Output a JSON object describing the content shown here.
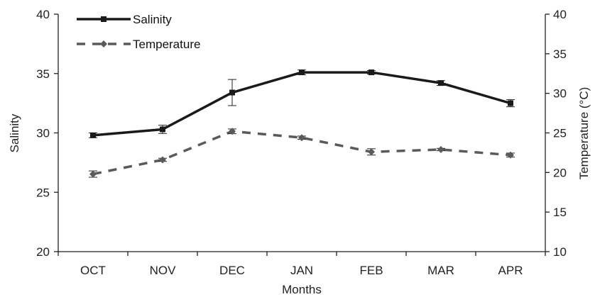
{
  "chart_data": {
    "type": "line",
    "categories": [
      "OCT",
      "NOV",
      "DEC",
      "JAN",
      "FEB",
      "MAR",
      "APR"
    ],
    "xlabel": "Months",
    "ylabel_left": "Salinity",
    "ylabel_right": "Temperature (°C)",
    "ylim_left": [
      20,
      40
    ],
    "ylim_right": [
      10,
      40
    ],
    "yticks_left": [
      20,
      25,
      30,
      35,
      40
    ],
    "yticks_right": [
      10,
      15,
      20,
      25,
      30,
      35,
      40
    ],
    "grid": false,
    "legend_position": "top-left",
    "series": [
      {
        "name": "Salinity",
        "axis": "left",
        "style": "solid",
        "marker": "square",
        "color": "#1a1a1a",
        "values": [
          29.8,
          30.3,
          33.4,
          35.1,
          35.1,
          34.2,
          32.5
        ],
        "errors": [
          0.2,
          0.35,
          1.1,
          0.2,
          0.15,
          0.2,
          0.3
        ]
      },
      {
        "name": "Temperature",
        "axis": "right",
        "style": "dashed",
        "marker": "diamond",
        "color": "#5a5a5a",
        "values": [
          19.8,
          21.6,
          25.2,
          24.4,
          22.6,
          22.9,
          22.2
        ],
        "errors": [
          0.4,
          0.2,
          0.3,
          0.2,
          0.4,
          0.15,
          0.25
        ]
      }
    ]
  }
}
